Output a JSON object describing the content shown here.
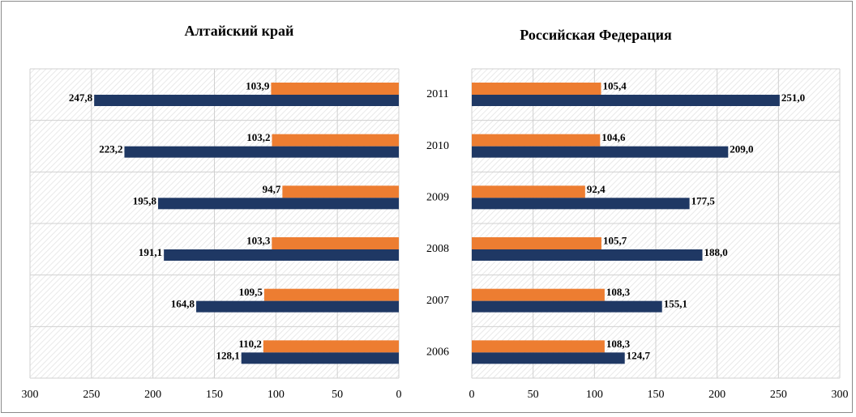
{
  "chart_data": [
    {
      "type": "bar",
      "title": "Алтайский край",
      "categories": [
        null,
        null,
        null,
        null,
        null,
        null
      ],
      "series": [
        {
          "color": "#ed7d31",
          "values": [
            110.2,
            109.5,
            103.3,
            94.7,
            103.2,
            103.9
          ],
          "value_labels": [
            "110,2",
            "109,5",
            "103,3",
            "94,7",
            "103,2",
            "103,9"
          ]
        },
        {
          "color": "#1f3864",
          "values": [
            128.1,
            164.8,
            191.1,
            195.8,
            223.2,
            247.8
          ],
          "value_labels": [
            "128,1",
            "164,8",
            "191,1",
            "195,8",
            "223,2",
            "247,8"
          ]
        }
      ],
      "xlim": [
        300,
        0
      ],
      "xticks": [
        300,
        250,
        200,
        150,
        100,
        50,
        0
      ],
      "grid": true
    },
    {
      "type": "bar",
      "title": "Российская Федерация",
      "categories": [
        "2006",
        "2007",
        "2008",
        "2009",
        "2010",
        "2011"
      ],
      "series": [
        {
          "color": "#ed7d31",
          "values": [
            108.3,
            108.3,
            105.7,
            92.4,
            104.6,
            105.4
          ],
          "value_labels": [
            "108,3",
            "108,3",
            "105,7",
            "92,4",
            "104,6",
            "105,4"
          ]
        },
        {
          "color": "#1f3864",
          "values": [
            124.7,
            155.1,
            188.0,
            177.5,
            209.0,
            251.0
          ],
          "value_labels": [
            "124,7",
            "155,1",
            "188,0",
            "177,5",
            "209,0",
            "251,0"
          ]
        }
      ],
      "xlim": [
        0,
        300
      ],
      "xticks": [
        0,
        50,
        100,
        150,
        200,
        250,
        300
      ],
      "grid": true
    }
  ]
}
